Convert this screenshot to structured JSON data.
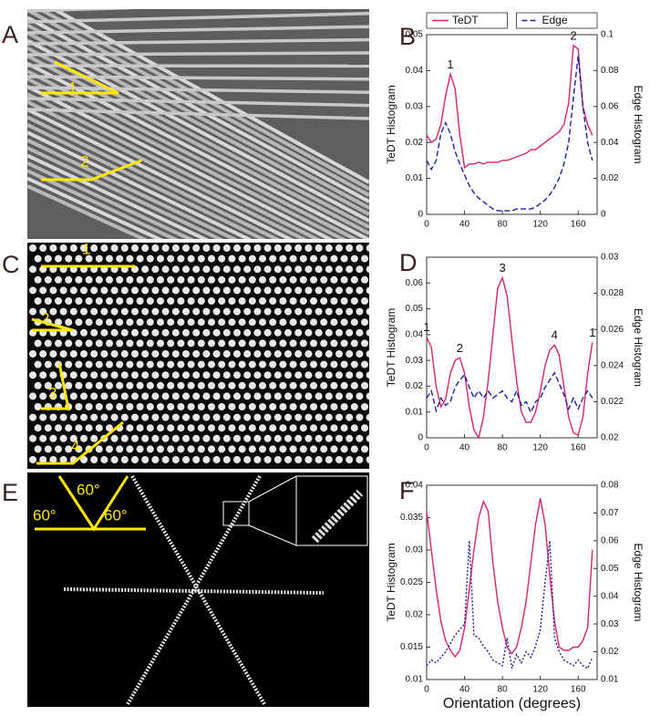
{
  "panels": [
    "A",
    "B",
    "C",
    "D",
    "E",
    "F"
  ],
  "images": {
    "A": [
      "1",
      "2"
    ],
    "C": [
      "1",
      "2",
      "3",
      "4"
    ],
    "E": [
      "60°",
      "60°",
      "60°"
    ]
  },
  "chart_data": [
    {
      "type": "line",
      "xlim": [
        0,
        180
      ],
      "xticks": [
        0,
        40,
        80,
        120,
        160
      ],
      "ylim": [
        0,
        0.05
      ],
      "yticks": [
        0,
        0.01,
        0.02,
        0.03,
        0.04,
        0.05
      ],
      "y2lim": [
        0,
        0.1
      ],
      "y2ticks": [
        0,
        0.02,
        0.04,
        0.06,
        0.08,
        0.1
      ],
      "ylabel": "TeDT Histogram",
      "y2label": "Edge Histogram",
      "legend": "top",
      "x": [
        0,
        5,
        10,
        15,
        20,
        25,
        30,
        35,
        40,
        45,
        50,
        55,
        60,
        65,
        70,
        75,
        80,
        85,
        90,
        95,
        100,
        105,
        110,
        115,
        120,
        125,
        130,
        135,
        140,
        145,
        150,
        155,
        160,
        165,
        170,
        175
      ],
      "series": [
        {
          "name": "TeDT",
          "color": "#d6246e",
          "line_style": "solid",
          "values": [
            0.022,
            0.02,
            0.021,
            0.025,
            0.033,
            0.039,
            0.035,
            0.022,
            0.013,
            0.014,
            0.014,
            0.0145,
            0.014,
            0.0145,
            0.0145,
            0.0145,
            0.015,
            0.015,
            0.0155,
            0.016,
            0.0165,
            0.017,
            0.018,
            0.018,
            0.019,
            0.02,
            0.021,
            0.022,
            0.023,
            0.025,
            0.031,
            0.047,
            0.046,
            0.03,
            0.025,
            0.022
          ]
        },
        {
          "name": "Edge",
          "color": "#1f1f9e",
          "line_style": "dashed",
          "axis": "y2",
          "values": [
            0.03,
            0.025,
            0.03,
            0.045,
            0.051,
            0.045,
            0.035,
            0.028,
            0.022,
            0.016,
            0.012,
            0.009,
            0.007,
            0.005,
            0.003,
            0.002,
            0.002,
            0.002,
            0.002,
            0.003,
            0.003,
            0.003,
            0.003,
            0.004,
            0.006,
            0.008,
            0.011,
            0.015,
            0.02,
            0.028,
            0.04,
            0.065,
            0.088,
            0.06,
            0.04,
            0.03
          ]
        }
      ],
      "annotations": [
        {
          "text": "1",
          "x": 25
        },
        {
          "text": "2",
          "x": 155
        }
      ]
    },
    {
      "type": "line",
      "xlim": [
        0,
        180
      ],
      "xticks": [
        0,
        40,
        80,
        120,
        160
      ],
      "ylim": [
        0,
        0.07
      ],
      "yticks": [
        0,
        0.01,
        0.02,
        0.03,
        0.04,
        0.05,
        0.06
      ],
      "y2lim": [
        0.02,
        0.03
      ],
      "y2ticks": [
        0.02,
        0.022,
        0.024,
        0.026,
        0.028,
        0.03
      ],
      "ylabel": "TeDT Histogram",
      "y2label": "Edge Histogram",
      "x": [
        0,
        5,
        10,
        15,
        20,
        25,
        30,
        35,
        40,
        45,
        50,
        55,
        60,
        65,
        70,
        75,
        80,
        85,
        90,
        95,
        100,
        105,
        110,
        115,
        120,
        125,
        130,
        135,
        140,
        145,
        150,
        155,
        160,
        165,
        170,
        175
      ],
      "series": [
        {
          "color": "#d6246e",
          "line_style": "solid",
          "values": [
            0.039,
            0.035,
            0.02,
            0.012,
            0.015,
            0.025,
            0.03,
            0.031,
            0.025,
            0.012,
            0.003,
            0.0,
            0.008,
            0.022,
            0.04,
            0.058,
            0.062,
            0.055,
            0.038,
            0.022,
            0.01,
            0.006,
            0.006,
            0.01,
            0.018,
            0.028,
            0.034,
            0.036,
            0.032,
            0.02,
            0.008,
            0.002,
            0.001,
            0.008,
            0.025,
            0.037
          ]
        },
        {
          "color": "#1f1f9e",
          "line_style": "dashed",
          "axis": "y2",
          "values": [
            0.0222,
            0.0226,
            0.0215,
            0.0222,
            0.0218,
            0.022,
            0.0228,
            0.0232,
            0.0235,
            0.0228,
            0.0222,
            0.0226,
            0.0222,
            0.0226,
            0.0222,
            0.0224,
            0.0226,
            0.0222,
            0.022,
            0.0226,
            0.0218,
            0.022,
            0.0214,
            0.022,
            0.0222,
            0.0228,
            0.0232,
            0.0236,
            0.023,
            0.0224,
            0.0216,
            0.0222,
            0.0216,
            0.0222,
            0.0226,
            0.0222
          ]
        }
      ],
      "annotations": [
        {
          "text": "1",
          "x": 0
        },
        {
          "text": "2",
          "x": 35
        },
        {
          "text": "3",
          "x": 80
        },
        {
          "text": "4",
          "x": 135
        },
        {
          "text": "1",
          "x": 175
        }
      ]
    },
    {
      "type": "line",
      "xlim": [
        0,
        180
      ],
      "xticks": [
        0,
        40,
        80,
        120,
        160
      ],
      "ylim": [
        0.01,
        0.04
      ],
      "yticks": [
        0.01,
        0.015,
        0.02,
        0.025,
        0.03,
        0.035,
        0.04
      ],
      "y2lim": [
        0.01,
        0.08
      ],
      "y2ticks": [
        0.01,
        0.02,
        0.03,
        0.04,
        0.05,
        0.06,
        0.07,
        0.08
      ],
      "ylabel": "TeDT Histogram",
      "y2label": "Edge Histogram",
      "xlabel": "Orientation (degrees)",
      "x": [
        0,
        5,
        10,
        15,
        20,
        25,
        30,
        35,
        40,
        45,
        50,
        55,
        60,
        65,
        70,
        75,
        80,
        85,
        90,
        95,
        100,
        105,
        110,
        115,
        120,
        125,
        130,
        135,
        140,
        145,
        150,
        155,
        160,
        165,
        170,
        175
      ],
      "series": [
        {
          "color": "#d6246e",
          "line_style": "solid",
          "values": [
            0.036,
            0.03,
            0.024,
            0.019,
            0.016,
            0.0145,
            0.0135,
            0.0145,
            0.018,
            0.024,
            0.03,
            0.035,
            0.0375,
            0.036,
            0.028,
            0.022,
            0.018,
            0.015,
            0.014,
            0.015,
            0.018,
            0.022,
            0.028,
            0.034,
            0.038,
            0.034,
            0.026,
            0.019,
            0.015,
            0.0145,
            0.0145,
            0.015,
            0.015,
            0.016,
            0.018,
            0.03
          ]
        },
        {
          "color": "#1f1f9e",
          "line_style": "dotted",
          "axis": "y2",
          "values": [
            0.015,
            0.017,
            0.016,
            0.018,
            0.02,
            0.023,
            0.026,
            0.028,
            0.03,
            0.06,
            0.026,
            0.025,
            0.022,
            0.02,
            0.017,
            0.016,
            0.015,
            0.025,
            0.014,
            0.019,
            0.016,
            0.02,
            0.018,
            0.022,
            0.028,
            0.045,
            0.06,
            0.025,
            0.02,
            0.017,
            0.016,
            0.015,
            0.017,
            0.015,
            0.014,
            0.018
          ]
        }
      ]
    }
  ]
}
